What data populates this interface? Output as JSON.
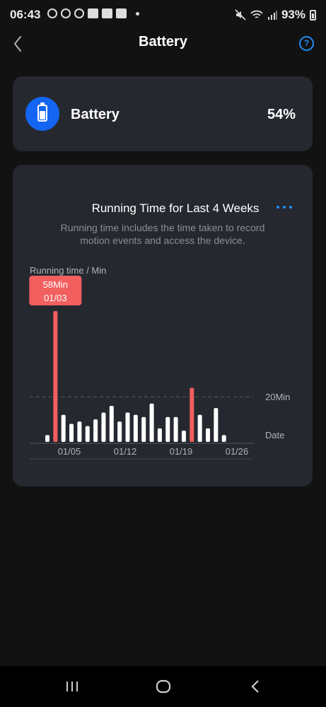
{
  "status_bar": {
    "time": "06:43",
    "battery_percent": "93%"
  },
  "header": {
    "title": "Battery",
    "back_icon": "chevron-left-icon",
    "help_icon": "help-circle-icon"
  },
  "battery_card": {
    "label": "Battery",
    "value": "54%",
    "icon": "battery-icon",
    "icon_bg": "#1466f2"
  },
  "chart_card": {
    "title": "Running Time for Last 4 Weeks",
    "description": "Running time includes the time taken to record motion events and access the device.",
    "more_icon": "more-horizontal-icon"
  },
  "chart_data": {
    "type": "bar",
    "ylabel": "Running time / Min",
    "xlabel": "Date",
    "reference_line": {
      "value": 20,
      "label": "20Min"
    },
    "tick_labels": [
      "01/05",
      "01/12",
      "01/19",
      "01/26"
    ],
    "tooltip": {
      "value": "58Min",
      "date": "01/03"
    },
    "highlight_color": "#f25f5f",
    "bar_color": "#ffffff",
    "values": [
      3,
      58,
      12,
      8,
      9,
      7,
      10,
      13,
      16,
      9,
      13,
      12,
      11,
      17,
      6,
      11,
      11,
      5,
      24,
      12,
      6,
      15,
      3
    ],
    "highlighted_indices": [
      1,
      18
    ],
    "ymax": 58
  }
}
